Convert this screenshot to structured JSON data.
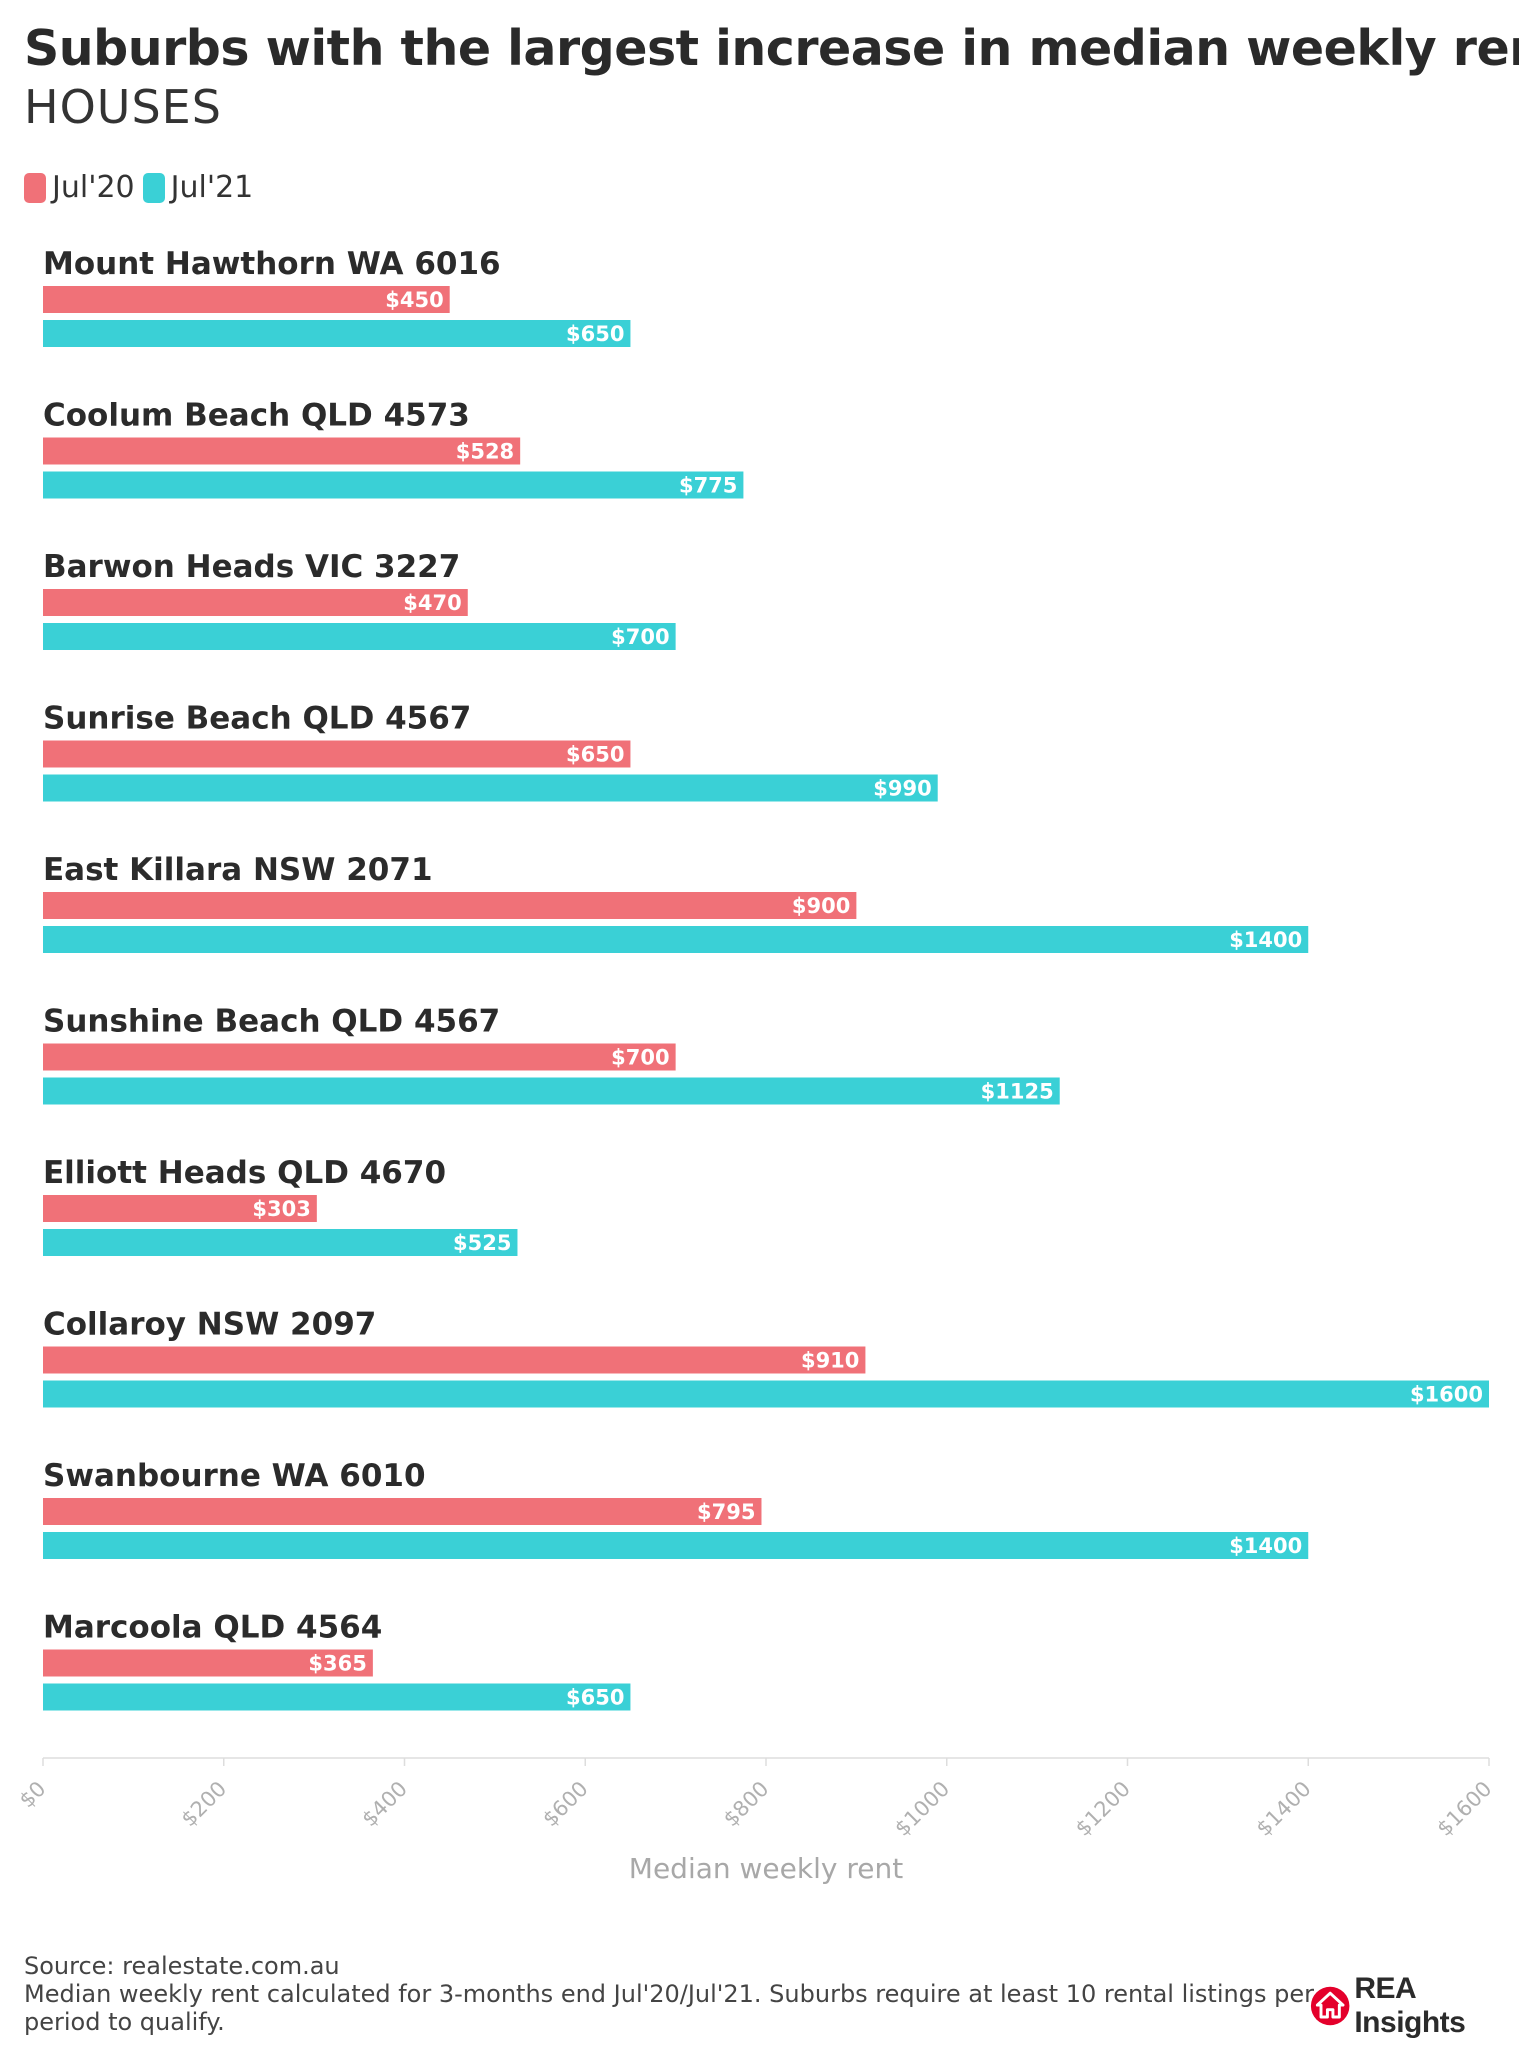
{
  "header": {
    "title": "Suburbs with the largest increase in median weekly rent",
    "subtitle": "HOUSES"
  },
  "colors": {
    "jul20": "#f07178",
    "jul21": "#3ad0d6"
  },
  "legend": [
    {
      "label": "Jul'20"
    },
    {
      "label": "Jul'21"
    }
  ],
  "chart_data": {
    "type": "bar",
    "orientation": "horizontal",
    "title": "Suburbs with the largest increase in median weekly rent",
    "subtitle": "HOUSES",
    "categories": [
      "Mount Hawthorn WA 6016",
      "Coolum Beach QLD 4573",
      "Barwon Heads VIC 3227",
      "Sunrise Beach QLD 4567",
      "East Killara NSW 2071",
      "Sunshine Beach QLD 4567",
      "Elliott Heads QLD 4670",
      "Collaroy NSW 2097",
      "Swanbourne WA 6010",
      "Marcoola QLD 4564"
    ],
    "series": [
      {
        "name": "Jul'20",
        "values": [
          450,
          528,
          470,
          650,
          900,
          700,
          303,
          910,
          795,
          365
        ]
      },
      {
        "name": "Jul'21",
        "values": [
          650,
          775,
          700,
          990,
          1400,
          1125,
          525,
          1600,
          1400,
          650
        ]
      }
    ],
    "value_prefix": "$",
    "xlabel": "Median weekly rent",
    "ylabel": "",
    "xlim": [
      0,
      1600
    ],
    "ticks": [
      0,
      200,
      400,
      600,
      800,
      1000,
      1200,
      1400,
      1600
    ],
    "tick_labels": [
      "$0",
      "$200",
      "$400",
      "$600",
      "$800",
      "$1000",
      "$1200",
      "$1400",
      "$1600"
    ],
    "legend_position": "top-left",
    "grid": false
  },
  "footer": {
    "source": "Source: realestate.com.au",
    "note": "Median weekly rent calculated for 3-months end Jul'20/Jul'21. Suburbs require at least 10 rental listings per period to qualify."
  },
  "logo": {
    "text": "REA Insights"
  }
}
